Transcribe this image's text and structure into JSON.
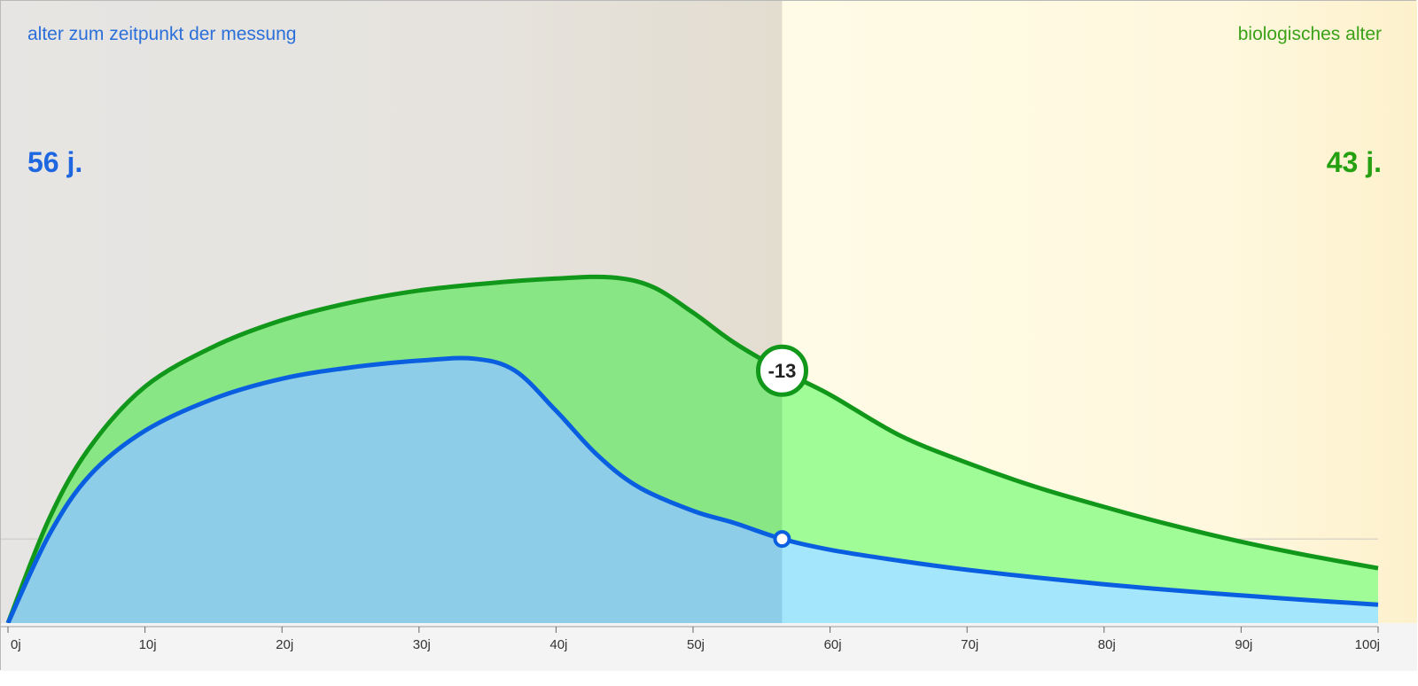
{
  "labels": {
    "left_caption": "alter zum zeitpunkt der messung",
    "right_caption": "biologisches alter",
    "left_value": "56 j.",
    "right_value": "43 j."
  },
  "colors": {
    "blue_line": "#0a5fe0",
    "blue_fill": "#8dcde8",
    "blue_fill_after": "#a4e6fb",
    "green_line": "#11981a",
    "green_fill": "#88e684",
    "green_fill_after": "#a0fc96",
    "bg_left": "#e5e3df",
    "bg_right": "#fff9dc"
  },
  "chart_data": {
    "type": "area",
    "x_ticks": [
      "0j",
      "10j",
      "20j",
      "30j",
      "40j",
      "50j",
      "60j",
      "70j",
      "80j",
      "90j",
      "100j"
    ],
    "xlim": [
      0,
      100
    ],
    "ylim": [
      0,
      1
    ],
    "measurement_age": 56.5,
    "difference_label": "-13",
    "series": [
      {
        "key": "green",
        "points": [
          [
            0,
            0
          ],
          [
            3,
            0.26
          ],
          [
            6,
            0.44
          ],
          [
            10,
            0.59
          ],
          [
            15,
            0.69
          ],
          [
            20,
            0.756
          ],
          [
            25,
            0.8
          ],
          [
            30,
            0.83
          ],
          [
            35,
            0.848
          ],
          [
            40,
            0.86
          ],
          [
            44,
            0.863
          ],
          [
            47,
            0.84
          ],
          [
            50,
            0.775
          ],
          [
            53,
            0.7
          ],
          [
            56.5,
            0.63
          ],
          [
            60,
            0.57
          ],
          [
            65,
            0.47
          ],
          [
            70,
            0.4
          ],
          [
            75,
            0.34
          ],
          [
            80,
            0.29
          ],
          [
            85,
            0.244
          ],
          [
            90,
            0.203
          ],
          [
            95,
            0.168
          ],
          [
            100,
            0.137
          ]
        ]
      },
      {
        "key": "blue",
        "points": [
          [
            0,
            0
          ],
          [
            3,
            0.22
          ],
          [
            6,
            0.37
          ],
          [
            10,
            0.48
          ],
          [
            15,
            0.56
          ],
          [
            20,
            0.61
          ],
          [
            25,
            0.638
          ],
          [
            30,
            0.655
          ],
          [
            34,
            0.66
          ],
          [
            37,
            0.63
          ],
          [
            40,
            0.53
          ],
          [
            43,
            0.42
          ],
          [
            46,
            0.34
          ],
          [
            50,
            0.28
          ],
          [
            53,
            0.25
          ],
          [
            56.5,
            0.21
          ],
          [
            60,
            0.183
          ],
          [
            65,
            0.156
          ],
          [
            70,
            0.133
          ],
          [
            75,
            0.114
          ],
          [
            80,
            0.097
          ],
          [
            85,
            0.082
          ],
          [
            90,
            0.069
          ],
          [
            95,
            0.057
          ],
          [
            100,
            0.046
          ]
        ]
      }
    ]
  }
}
